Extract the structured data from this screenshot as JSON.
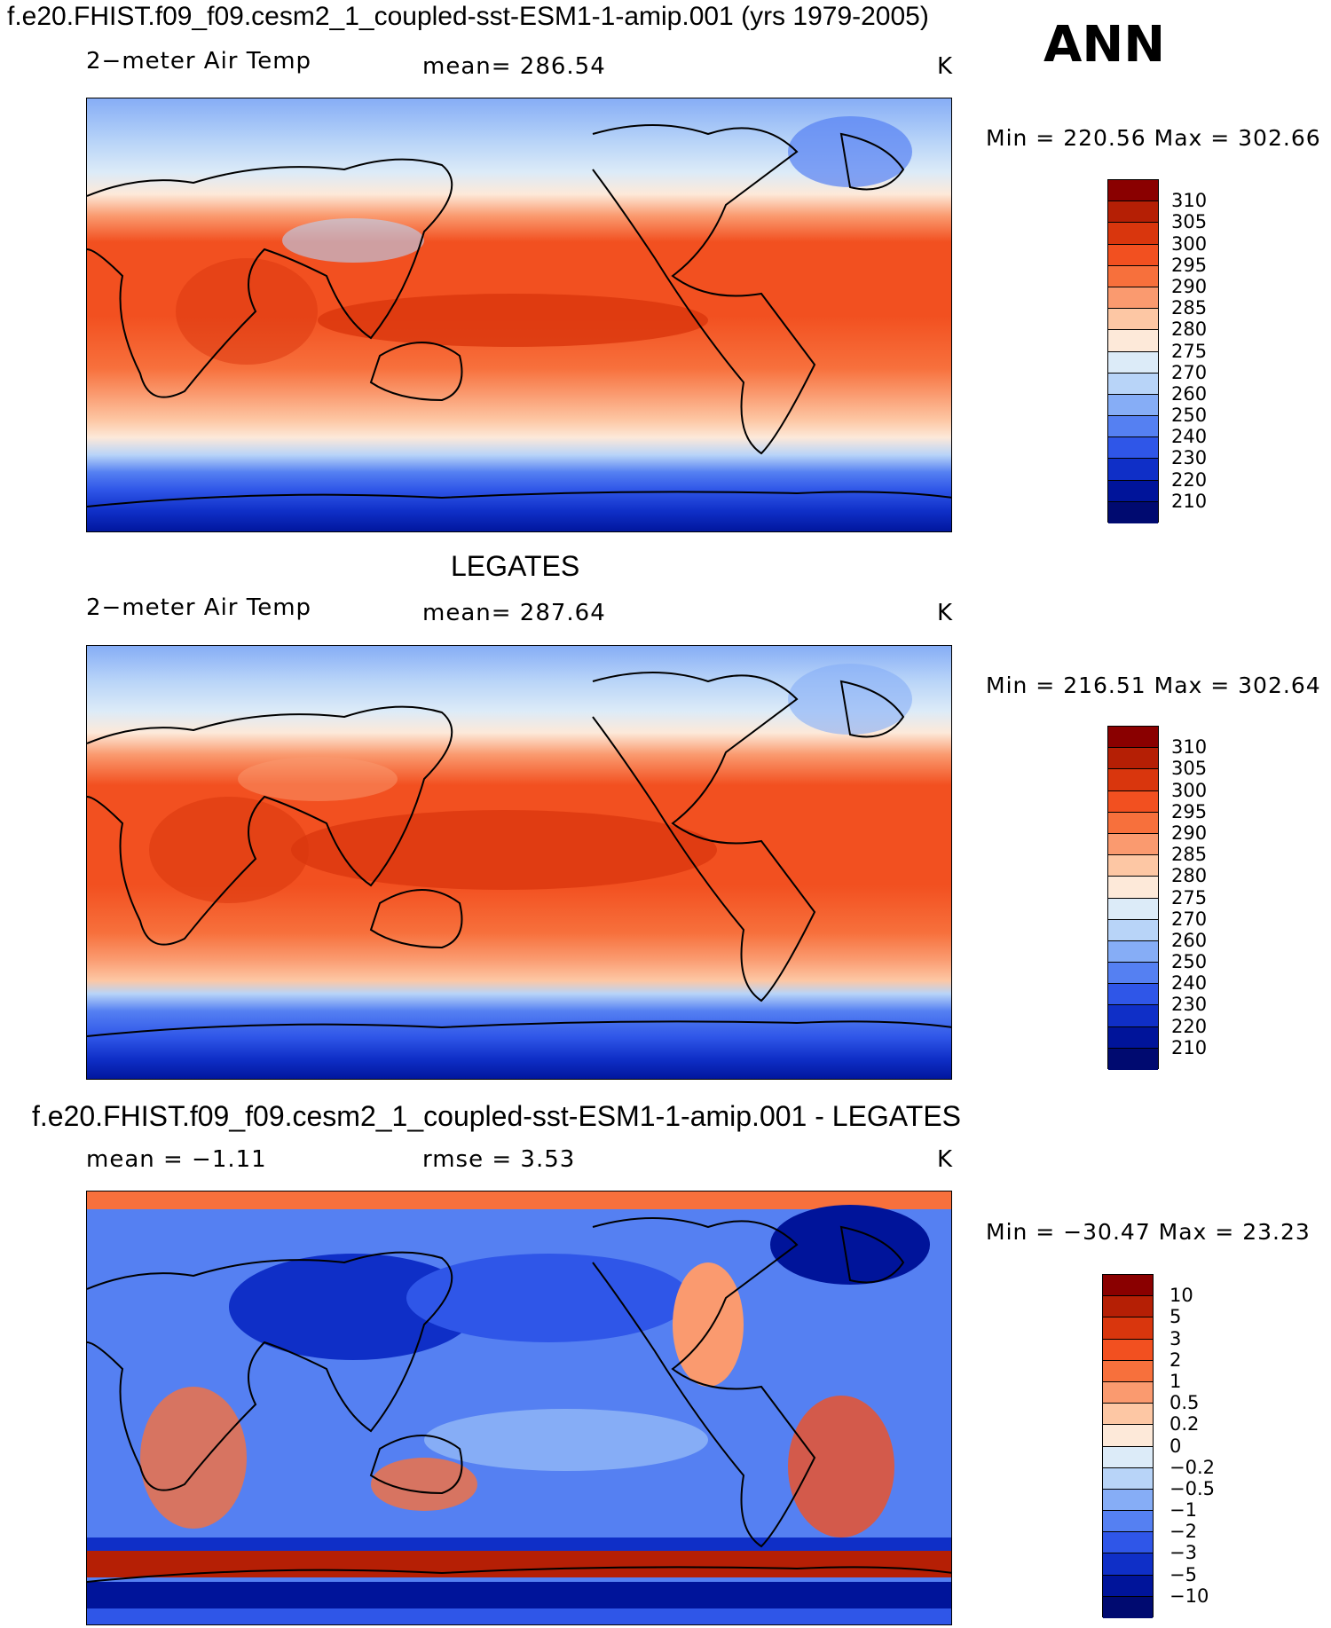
{
  "title": "f.e20.FHIST.f09_f09.cesm2_1_coupled-sst-ESM1-1-amip.001 (yrs 1979-2005)",
  "season": "ANN",
  "panels": [
    {
      "heading": "",
      "variable": "2−meter Air Temp",
      "mean_text": "mean=  286.54",
      "units": "K",
      "minmax_text": "Min  =  220.56  Max  =  302.66",
      "colorbar": {
        "labels": [
          "310",
          "305",
          "300",
          "295",
          "290",
          "285",
          "280",
          "275",
          "270",
          "260",
          "250",
          "240",
          "230",
          "220",
          "210"
        ],
        "colors": [
          "#8a0000",
          "#b51f05",
          "#d9360d",
          "#f25020",
          "#f7703c",
          "#fa9a6f",
          "#fdc7a4",
          "#fde9d9",
          "#dcebf8",
          "#b8d4f8",
          "#86adf6",
          "#5580f2",
          "#2f56e8",
          "#0f2fc7",
          "#00149a",
          "#000a70"
        ]
      }
    },
    {
      "heading": "LEGATES",
      "variable": "2−meter Air Temp",
      "mean_text": "mean=  287.64",
      "units": "K",
      "minmax_text": "Min  =  216.51  Max  =  302.64",
      "colorbar": {
        "labels": [
          "310",
          "305",
          "300",
          "295",
          "290",
          "285",
          "280",
          "275",
          "270",
          "260",
          "250",
          "240",
          "230",
          "220",
          "210"
        ],
        "colors": [
          "#8a0000",
          "#b51f05",
          "#d9360d",
          "#f25020",
          "#f7703c",
          "#fa9a6f",
          "#fdc7a4",
          "#fde9d9",
          "#dcebf8",
          "#b8d4f8",
          "#86adf6",
          "#5580f2",
          "#2f56e8",
          "#0f2fc7",
          "#00149a",
          "#000a70"
        ]
      }
    },
    {
      "heading": "f.e20.FHIST.f09_f09.cesm2_1_coupled-sst-ESM1-1-amip.001 - LEGATES",
      "variable": "mean  =    −1.11",
      "mean_text": "rmse  =     3.53",
      "units": "K",
      "minmax_text": "Min  =  −30.47  Max  =    23.23",
      "colorbar": {
        "labels": [
          "10",
          "5",
          "3",
          "2",
          "1",
          "0.5",
          "0.2",
          "0",
          "−0.2",
          "−0.5",
          "−1",
          "−2",
          "−3",
          "−5",
          "−10"
        ],
        "colors": [
          "#8a0000",
          "#b51f05",
          "#d9360d",
          "#f25020",
          "#f7703c",
          "#fa9a6f",
          "#fdc7a4",
          "#fde9d9",
          "#dcebf8",
          "#b8d4f8",
          "#86adf6",
          "#5580f2",
          "#2f56e8",
          "#0f2fc7",
          "#00149a",
          "#000a70"
        ]
      }
    }
  ]
}
